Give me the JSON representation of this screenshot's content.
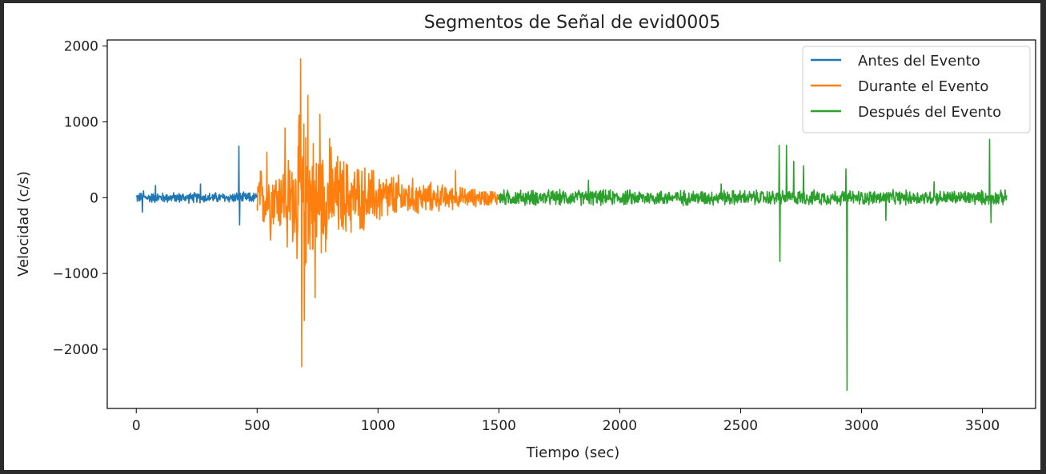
{
  "chart_data": {
    "type": "line",
    "title": "Segmentos de Señal de evid0005",
    "xlabel": "Tiempo (sec)",
    "ylabel": "Velocidad (c/s)",
    "xlim": [
      -120,
      3720
    ],
    "ylim": [
      -2780,
      2080
    ],
    "xticks": [
      0,
      500,
      1000,
      1500,
      2000,
      2500,
      3000,
      3500
    ],
    "yticks": [
      -2000,
      -1000,
      0,
      1000,
      2000
    ],
    "ytick_labels": [
      "−2000",
      "−1000",
      "0",
      "1000",
      "2000"
    ],
    "grid": false,
    "legend_position": "top-right",
    "series": [
      {
        "name": "Antes del Evento",
        "color": "#1f77b4",
        "x_range": [
          0,
          500
        ],
        "baseline_amplitude": 80,
        "envelope": [
          [
            0,
            80
          ],
          [
            500,
            80
          ]
        ],
        "spikes": [
          [
            25,
            -190
          ],
          [
            30,
            90
          ],
          [
            80,
            160
          ],
          [
            265,
            180
          ],
          [
            425,
            680
          ],
          [
            427,
            -360
          ]
        ]
      },
      {
        "name": "Durante el Evento",
        "color": "#ff7f0e",
        "x_range": [
          500,
          1500
        ],
        "baseline_amplitude": 500,
        "envelope": [
          [
            500,
            450
          ],
          [
            600,
            520
          ],
          [
            650,
            750
          ],
          [
            680,
            1300
          ],
          [
            720,
            1000
          ],
          [
            800,
            750
          ],
          [
            900,
            550
          ],
          [
            1000,
            430
          ],
          [
            1100,
            330
          ],
          [
            1200,
            240
          ],
          [
            1300,
            180
          ],
          [
            1400,
            140
          ],
          [
            1500,
            120
          ]
        ],
        "spikes": [
          [
            540,
            600
          ],
          [
            555,
            -560
          ],
          [
            615,
            920
          ],
          [
            625,
            -650
          ],
          [
            680,
            1830
          ],
          [
            685,
            -2230
          ],
          [
            695,
            -1620
          ],
          [
            710,
            1350
          ],
          [
            740,
            -1320
          ],
          [
            760,
            1100
          ],
          [
            800,
            780
          ],
          [
            1320,
            360
          ]
        ]
      },
      {
        "name": "Después del Evento",
        "color": "#2ca02c",
        "x_range": [
          1500,
          3600
        ],
        "baseline_amplitude": 120,
        "envelope": [
          [
            1500,
            120
          ],
          [
            3600,
            110
          ]
        ],
        "spikes": [
          [
            1870,
            230
          ],
          [
            2420,
            180
          ],
          [
            2660,
            690
          ],
          [
            2663,
            -840
          ],
          [
            2690,
            690
          ],
          [
            2720,
            480
          ],
          [
            2760,
            420
          ],
          [
            2935,
            380
          ],
          [
            2940,
            -2540
          ],
          [
            3100,
            -300
          ],
          [
            3300,
            210
          ],
          [
            3530,
            770
          ],
          [
            3535,
            -330
          ]
        ]
      }
    ]
  }
}
